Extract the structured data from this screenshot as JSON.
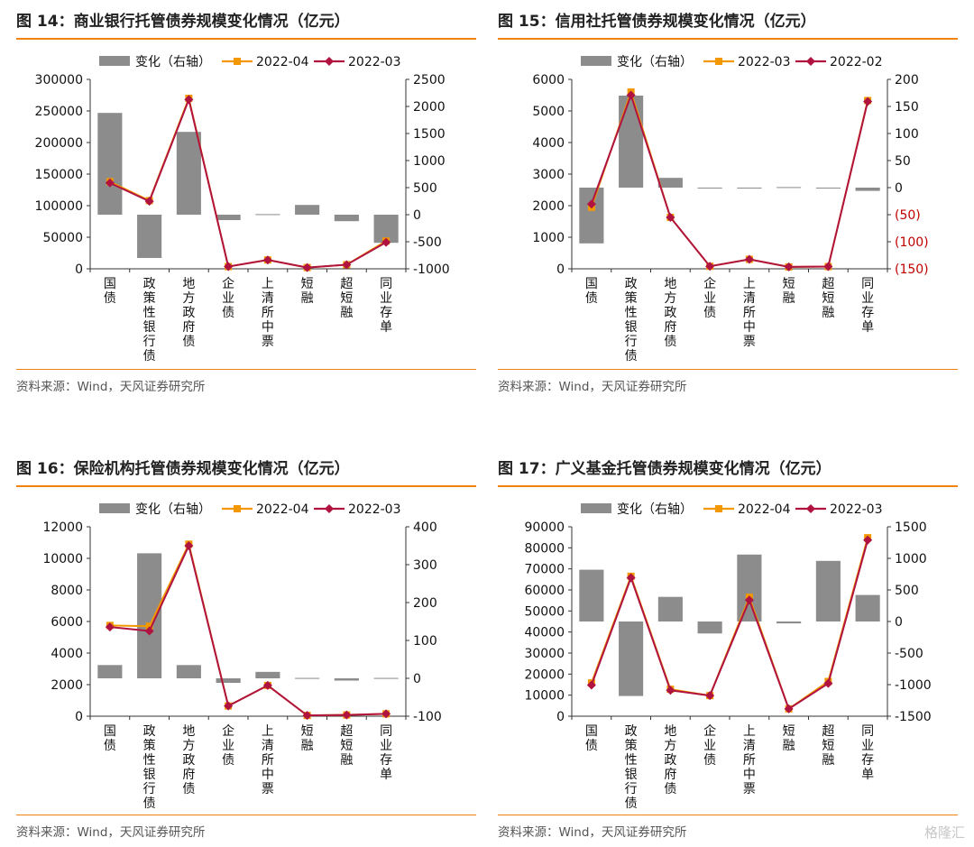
{
  "categories": [
    "国债",
    "政策性银行债",
    "地方政府债",
    "企业债",
    "上清所中票",
    "短融",
    "超短融",
    "同业存单"
  ],
  "source": "资料来源：Wind，天风证券研究所",
  "watermark": "格隆汇",
  "colors": {
    "accent": "#f0820f",
    "bar": "#8c8c8c",
    "line_a": "#f39800",
    "line_b": "#b0133f",
    "neg_tick": "#c00000"
  },
  "charts": [
    {
      "title": "图 14：商业银行托管债券规模变化情况（亿元）",
      "chart_data": {
        "type": "bar",
        "categories": [
          "国债",
          "政策性银行债",
          "地方政府债",
          "企业债",
          "上清所中票",
          "短融",
          "超短融",
          "同业存单"
        ],
        "series": [
          {
            "name": "变化（右轴）",
            "kind": "bar",
            "axis": "right",
            "values": [
              1880,
              -800,
              1530,
              -100,
              10,
              180,
              -120,
              -520
            ]
          },
          {
            "name": "2022-04",
            "kind": "line",
            "axis": "left",
            "values": [
              138000,
              108000,
              270000,
              3500,
              14000,
              2000,
              6500,
              44000
            ]
          },
          {
            "name": "2022-03",
            "kind": "line",
            "axis": "left",
            "values": [
              136000,
              107000,
              268000,
              3600,
              14000,
              2000,
              6500,
              42000
            ]
          }
        ],
        "ylim": [
          0,
          300000
        ],
        "yticks": [
          "0",
          "50000",
          "100000",
          "150000",
          "200000",
          "250000",
          "300000"
        ],
        "y2lim": [
          -1000,
          2500
        ],
        "y2ticks": [
          "-1000",
          "-500",
          "0",
          "500",
          "1000",
          "1500",
          "2000",
          "2500"
        ],
        "legend": "top"
      }
    },
    {
      "title": "图 15：信用社托管债券规模变化情况（亿元）",
      "chart_data": {
        "type": "bar",
        "categories": [
          "国债",
          "政策性银行债",
          "地方政府债",
          "企业债",
          "上清所中票",
          "短融",
          "超短融",
          "同业存单"
        ],
        "series": [
          {
            "name": "变化（右轴）",
            "kind": "bar",
            "axis": "right",
            "values": [
              -103,
              170,
              18,
              -1,
              -1,
              1,
              -1,
              -6
            ]
          },
          {
            "name": "2022-03",
            "kind": "line",
            "axis": "left",
            "values": [
              1950,
              5600,
              1630,
              80,
              300,
              60,
              70,
              5330
            ]
          },
          {
            "name": "2022-02",
            "kind": "line",
            "axis": "left",
            "values": [
              2050,
              5500,
              1630,
              80,
              300,
              60,
              70,
              5300
            ]
          }
        ],
        "ylim": [
          0,
          6000
        ],
        "yticks": [
          "0",
          "1000",
          "2000",
          "3000",
          "4000",
          "5000",
          "6000"
        ],
        "y2lim": [
          -150,
          200
        ],
        "y2ticks": [
          "(150)",
          "(100)",
          "(50)",
          "0",
          "50",
          "100",
          "150",
          "200"
        ],
        "legend": "top"
      }
    },
    {
      "title": "图 16：保险机构托管债券规模变化情况（亿元）",
      "chart_data": {
        "type": "bar",
        "categories": [
          "国债",
          "政策性银行债",
          "地方政府债",
          "企业债",
          "上清所中票",
          "短融",
          "超短融",
          "同业存单"
        ],
        "series": [
          {
            "name": "变化（右轴）",
            "kind": "bar",
            "axis": "right",
            "values": [
              35,
              330,
              35,
              -12,
              17,
              1,
              -6,
              1
            ]
          },
          {
            "name": "2022-04",
            "kind": "line",
            "axis": "left",
            "values": [
              5750,
              5700,
              10900,
              650,
              1950,
              50,
              80,
              150
            ]
          },
          {
            "name": "2022-03",
            "kind": "line",
            "axis": "left",
            "values": [
              5650,
              5400,
              10800,
              650,
              1950,
              50,
              80,
              150
            ]
          }
        ],
        "ylim": [
          0,
          12000
        ],
        "yticks": [
          "0",
          "2000",
          "4000",
          "6000",
          "8000",
          "10000",
          "12000"
        ],
        "y2lim": [
          -100,
          400
        ],
        "y2ticks": [
          "-100",
          "0",
          "100",
          "200",
          "300",
          "400"
        ],
        "legend": "top"
      }
    },
    {
      "title": "图 17：广义基金托管债券规模变化情况（亿元）",
      "chart_data": {
        "type": "bar",
        "categories": [
          "国债",
          "政策性银行债",
          "地方政府债",
          "企业债",
          "上清所中票",
          "短融",
          "超短融",
          "同业存单"
        ],
        "series": [
          {
            "name": "变化（右轴）",
            "kind": "bar",
            "axis": "right",
            "values": [
              820,
              -1180,
              390,
              -190,
              1060,
              -30,
              960,
              420
            ]
          },
          {
            "name": "2022-04",
            "kind": "line",
            "axis": "left",
            "values": [
              15800,
              66500,
              12800,
              9800,
              56500,
              3500,
              16500,
              84800
            ]
          },
          {
            "name": "2022-03",
            "kind": "line",
            "axis": "left",
            "values": [
              14800,
              65800,
              12300,
              9800,
              55200,
              3500,
              15600,
              83700
            ]
          }
        ],
        "ylim": [
          0,
          90000
        ],
        "yticks": [
          "0",
          "10000",
          "20000",
          "30000",
          "40000",
          "50000",
          "60000",
          "70000",
          "80000",
          "90000"
        ],
        "y2lim": [
          -1500,
          1500
        ],
        "y2ticks": [
          "-1500",
          "-1000",
          "-500",
          "0",
          "500",
          "1000",
          "1500"
        ],
        "legend": "top"
      }
    }
  ]
}
